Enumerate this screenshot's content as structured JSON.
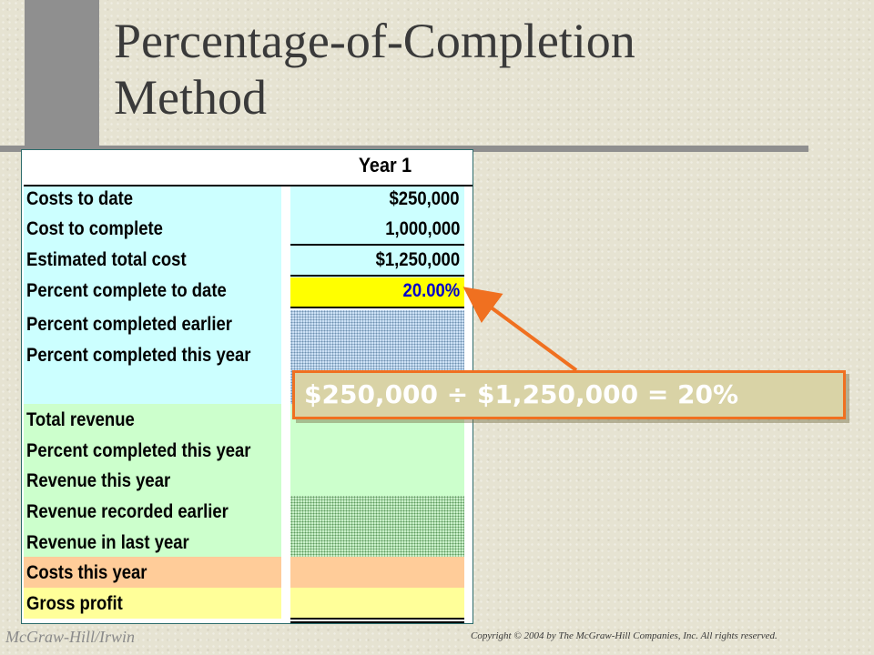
{
  "title_line1": "Percentage-of-Completion",
  "title_line2": "Method",
  "sheet": {
    "column_header": "Year 1",
    "rows": [
      {
        "label": "Costs to date",
        "value": "$250,000"
      },
      {
        "label": "Cost to complete",
        "value": "1,000,000"
      },
      {
        "label": "Estimated total cost",
        "value": "$1,250,000"
      },
      {
        "label": "Percent complete to date",
        "value": "20.00%"
      },
      {
        "label": "Percent completed earlier",
        "value": ""
      },
      {
        "label": "Percent completed this year",
        "value": ""
      },
      {
        "label": "Total revenue",
        "value": ""
      },
      {
        "label": "Percent completed this year",
        "value": ""
      },
      {
        "label": "Revenue this year",
        "value": ""
      },
      {
        "label": "Revenue recorded earlier",
        "value": ""
      },
      {
        "label": "Revenue in last year",
        "value": ""
      },
      {
        "label": "Costs this year",
        "value": ""
      },
      {
        "label": "Gross profit",
        "value": ""
      }
    ]
  },
  "callout": "$250,000 ÷ $1,250,000 = 20%",
  "colors": {
    "callout_border": "#f07020",
    "highlight": "#ffff00",
    "percent_text": "#0000cc"
  },
  "footer": {
    "left": "McGraw-Hill/Irwin",
    "right": "Copyright © 2004 by The McGraw-Hill Companies, Inc. All rights reserved."
  }
}
